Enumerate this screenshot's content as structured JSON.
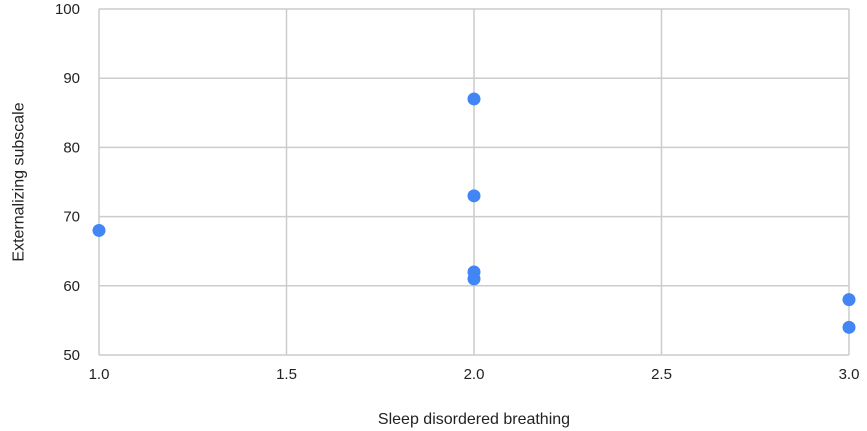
{
  "chart_data": {
    "type": "scatter",
    "title": "",
    "xlabel": "Sleep disordered breathing",
    "ylabel": "Externalizing subscale",
    "xlim": [
      1.0,
      3.0
    ],
    "ylim": [
      50,
      100
    ],
    "x_ticks": [
      "1.0",
      "1.5",
      "2.0",
      "2.5",
      "3.0"
    ],
    "y_ticks": [
      "50",
      "60",
      "70",
      "80",
      "90",
      "100"
    ],
    "grid": true,
    "legend": "none",
    "marker_color": "#4285f4",
    "series": [
      {
        "points": [
          {
            "x": 1.0,
            "y": 68
          },
          {
            "x": 2.0,
            "y": 87
          },
          {
            "x": 2.0,
            "y": 73
          },
          {
            "x": 2.0,
            "y": 62
          },
          {
            "x": 2.0,
            "y": 61
          },
          {
            "x": 3.0,
            "y": 58
          },
          {
            "x": 3.0,
            "y": 54
          }
        ]
      }
    ]
  }
}
